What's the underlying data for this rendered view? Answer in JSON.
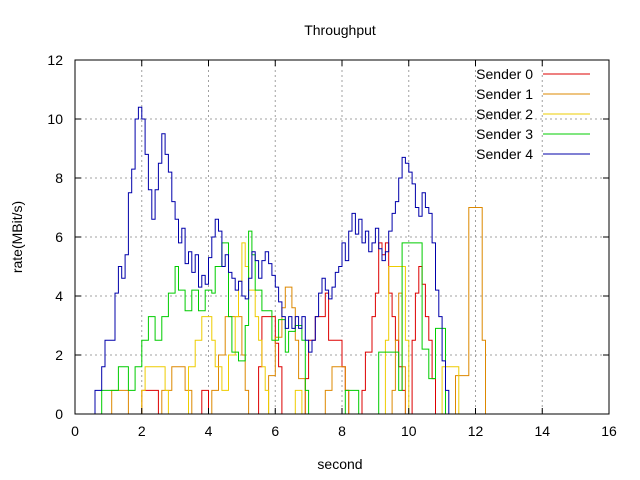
{
  "chart_data": {
    "type": "line",
    "title": "Throughput",
    "xlabel": "second",
    "ylabel": "rate(MBit/s)",
    "xlim": [
      0,
      16
    ],
    "ylim": [
      0,
      12
    ],
    "xticks": [
      0,
      2,
      4,
      6,
      8,
      10,
      12,
      14,
      16
    ],
    "yticks": [
      0,
      2,
      4,
      6,
      8,
      10,
      12
    ],
    "xtick_labels": [
      "0",
      "2",
      "4",
      "6",
      "8",
      "10",
      "12",
      "14",
      "16"
    ],
    "ytick_labels": [
      "0",
      "2",
      "4",
      "6",
      "8",
      "10",
      "12"
    ],
    "grid": true,
    "legend_position": "top-right",
    "step": true,
    "series": [
      {
        "name": "Sender 0",
        "color": "#dd0000",
        "points": [
          [
            1.9,
            0
          ],
          [
            2.0,
            0.8
          ],
          [
            2.4,
            0.8
          ],
          [
            2.5,
            0
          ],
          [
            3.7,
            0
          ],
          [
            3.8,
            0.8
          ],
          [
            4.0,
            0
          ],
          [
            5.4,
            0
          ],
          [
            5.5,
            1.6
          ],
          [
            5.6,
            3.3
          ],
          [
            5.9,
            3.3
          ],
          [
            6.0,
            2.4
          ],
          [
            6.1,
            1.6
          ],
          [
            6.2,
            0
          ],
          [
            6.8,
            0
          ],
          [
            6.9,
            1.2
          ],
          [
            7.0,
            2.5
          ],
          [
            7.2,
            3.3
          ],
          [
            7.5,
            4.1
          ],
          [
            7.6,
            2.5
          ],
          [
            7.8,
            2.5
          ],
          [
            8.0,
            1.6
          ],
          [
            8.1,
            0.8
          ],
          [
            8.2,
            0
          ],
          [
            8.5,
            0
          ],
          [
            8.6,
            0.8
          ],
          [
            8.7,
            2.1
          ],
          [
            8.9,
            3.3
          ],
          [
            9.0,
            4.1
          ],
          [
            9.1,
            5.8
          ],
          [
            9.2,
            5.4
          ],
          [
            9.3,
            5.8
          ],
          [
            9.4,
            4.1
          ],
          [
            9.5,
            3.3
          ],
          [
            9.6,
            2.5
          ],
          [
            9.7,
            1.6
          ],
          [
            9.8,
            0.8
          ],
          [
            9.9,
            0
          ],
          [
            10.0,
            0
          ],
          [
            10.1,
            2.5
          ],
          [
            10.2,
            4.1
          ],
          [
            10.3,
            5.0
          ],
          [
            10.4,
            4.4
          ],
          [
            10.5,
            3.3
          ],
          [
            10.6,
            2.5
          ],
          [
            10.7,
            1.2
          ],
          [
            10.8,
            0
          ]
        ]
      },
      {
        "name": "Sender 1",
        "color": "#dd8800",
        "points": [
          [
            1.0,
            0
          ],
          [
            1.1,
            0.8
          ],
          [
            1.5,
            0.8
          ],
          [
            1.6,
            0
          ],
          [
            2.5,
            0
          ],
          [
            2.6,
            0.8
          ],
          [
            2.9,
            1.6
          ],
          [
            3.2,
            1.6
          ],
          [
            3.3,
            0.8
          ],
          [
            3.5,
            0
          ],
          [
            4.0,
            0
          ],
          [
            4.1,
            0.8
          ],
          [
            4.3,
            2.0
          ],
          [
            4.5,
            3.3
          ],
          [
            4.8,
            3.3
          ],
          [
            5.0,
            2.0
          ],
          [
            5.1,
            0.8
          ],
          [
            5.2,
            0
          ],
          [
            5.7,
            0
          ],
          [
            5.8,
            1.3
          ],
          [
            6.0,
            2.6
          ],
          [
            6.2,
            3.6
          ],
          [
            6.3,
            4.3
          ],
          [
            6.5,
            3.6
          ],
          [
            6.6,
            2.5
          ],
          [
            6.7,
            1.2
          ],
          [
            6.9,
            0
          ],
          [
            7.4,
            0
          ],
          [
            7.5,
            0.8
          ],
          [
            7.7,
            1.6
          ],
          [
            8.0,
            1.6
          ],
          [
            8.1,
            0.8
          ],
          [
            8.2,
            0
          ],
          [
            9.4,
            0
          ],
          [
            9.5,
            0.8
          ],
          [
            9.6,
            2.5
          ],
          [
            9.7,
            4.1
          ],
          [
            9.8,
            1.6
          ],
          [
            9.9,
            0
          ],
          [
            11.3,
            0
          ],
          [
            11.4,
            1.3
          ],
          [
            11.7,
            1.3
          ],
          [
            11.8,
            7.0
          ],
          [
            12.1,
            7.0
          ],
          [
            12.2,
            2.5
          ],
          [
            12.3,
            0
          ]
        ]
      },
      {
        "name": "Sender 2",
        "color": "#eecc00",
        "points": [
          [
            1.9,
            0
          ],
          [
            2.0,
            0.8
          ],
          [
            2.1,
            1.6
          ],
          [
            2.5,
            1.6
          ],
          [
            2.7,
            0.8
          ],
          [
            2.8,
            0
          ],
          [
            3.2,
            0
          ],
          [
            3.4,
            1.6
          ],
          [
            3.6,
            2.5
          ],
          [
            3.8,
            3.3
          ],
          [
            4.0,
            3.3
          ],
          [
            4.1,
            2.5
          ],
          [
            4.2,
            1.6
          ],
          [
            4.4,
            0.8
          ],
          [
            4.6,
            2.0
          ],
          [
            4.8,
            3.3
          ],
          [
            4.9,
            4.5
          ],
          [
            5.0,
            5.8
          ],
          [
            5.1,
            5.0
          ],
          [
            5.2,
            4.2
          ],
          [
            5.4,
            3.3
          ],
          [
            5.5,
            2.5
          ],
          [
            5.6,
            1.6
          ],
          [
            5.7,
            0.8
          ],
          [
            5.8,
            0
          ],
          [
            6.5,
            0
          ],
          [
            6.6,
            0.8
          ],
          [
            6.8,
            0
          ],
          [
            9.2,
            0
          ],
          [
            9.3,
            2.5
          ],
          [
            9.4,
            5.0
          ],
          [
            9.8,
            5.0
          ],
          [
            9.9,
            2.5
          ],
          [
            10.0,
            0
          ],
          [
            10.9,
            0
          ],
          [
            11.0,
            1.6
          ],
          [
            11.3,
            1.6
          ],
          [
            11.5,
            0
          ]
        ]
      },
      {
        "name": "Sender 3",
        "color": "#00cc00",
        "points": [
          [
            0.7,
            0
          ],
          [
            0.8,
            0.8
          ],
          [
            1.2,
            0.8
          ],
          [
            1.3,
            1.6
          ],
          [
            1.5,
            1.6
          ],
          [
            1.6,
            0.8
          ],
          [
            1.8,
            1.6
          ],
          [
            2.0,
            2.5
          ],
          [
            2.2,
            3.3
          ],
          [
            2.4,
            2.5
          ],
          [
            2.6,
            3.3
          ],
          [
            2.8,
            4.1
          ],
          [
            3.0,
            5.0
          ],
          [
            3.1,
            4.2
          ],
          [
            3.3,
            3.5
          ],
          [
            3.5,
            4.2
          ],
          [
            3.7,
            3.5
          ],
          [
            3.9,
            4.2
          ],
          [
            4.1,
            4.1
          ],
          [
            4.2,
            5.0
          ],
          [
            4.4,
            5.8
          ],
          [
            4.6,
            3.3
          ],
          [
            4.7,
            2.1
          ],
          [
            4.9,
            1.8
          ],
          [
            5.1,
            3.0
          ],
          [
            5.2,
            6.2
          ],
          [
            5.3,
            5.4
          ],
          [
            5.4,
            4.2
          ],
          [
            5.6,
            3.5
          ],
          [
            5.9,
            2.5
          ],
          [
            6.1,
            3.2
          ],
          [
            6.3,
            2.1
          ],
          [
            6.4,
            2.8
          ],
          [
            6.6,
            3.0
          ],
          [
            6.8,
            2.5
          ],
          [
            6.9,
            0.8
          ],
          [
            7.0,
            0
          ],
          [
            8.0,
            0
          ],
          [
            8.1,
            0.8
          ],
          [
            8.4,
            0.8
          ],
          [
            8.5,
            0
          ],
          [
            9.0,
            0
          ],
          [
            9.1,
            2.1
          ],
          [
            9.6,
            2.1
          ],
          [
            9.7,
            0.8
          ],
          [
            9.8,
            5.8
          ],
          [
            10.3,
            5.8
          ],
          [
            10.4,
            2.2
          ],
          [
            10.6,
            1.2
          ],
          [
            10.8,
            2.9
          ],
          [
            11.0,
            2.9
          ],
          [
            11.1,
            0
          ]
        ]
      },
      {
        "name": "Sender 4",
        "color": "#0000aa",
        "points": [
          [
            0.5,
            0
          ],
          [
            0.6,
            0.8
          ],
          [
            0.8,
            1.6
          ],
          [
            0.9,
            2.5
          ],
          [
            1.1,
            2.5
          ],
          [
            1.2,
            4.1
          ],
          [
            1.3,
            5.0
          ],
          [
            1.4,
            4.6
          ],
          [
            1.5,
            5.4
          ],
          [
            1.6,
            7.5
          ],
          [
            1.7,
            8.3
          ],
          [
            1.8,
            10.0
          ],
          [
            1.9,
            10.4
          ],
          [
            2.0,
            10.0
          ],
          [
            2.1,
            8.8
          ],
          [
            2.2,
            7.6
          ],
          [
            2.3,
            6.6
          ],
          [
            2.4,
            7.6
          ],
          [
            2.5,
            8.5
          ],
          [
            2.6,
            9.5
          ],
          [
            2.7,
            8.8
          ],
          [
            2.8,
            8.2
          ],
          [
            2.9,
            7.2
          ],
          [
            3.0,
            6.6
          ],
          [
            3.1,
            5.8
          ],
          [
            3.2,
            6.3
          ],
          [
            3.3,
            5.1
          ],
          [
            3.4,
            5.5
          ],
          [
            3.5,
            4.8
          ],
          [
            3.6,
            5.4
          ],
          [
            3.7,
            4.3
          ],
          [
            3.8,
            4.7
          ],
          [
            3.9,
            4.4
          ],
          [
            4.0,
            5.3
          ],
          [
            4.1,
            6.0
          ],
          [
            4.2,
            6.6
          ],
          [
            4.3,
            6.2
          ],
          [
            4.4,
            5.0
          ],
          [
            4.5,
            5.4
          ],
          [
            4.6,
            4.8
          ],
          [
            4.7,
            4.6
          ],
          [
            4.8,
            4.2
          ],
          [
            4.9,
            4.5
          ],
          [
            5.0,
            4.0
          ],
          [
            5.1,
            3.9
          ],
          [
            5.2,
            4.6
          ],
          [
            5.3,
            5.5
          ],
          [
            5.4,
            5.2
          ],
          [
            5.5,
            4.6
          ],
          [
            5.6,
            5.2
          ],
          [
            5.7,
            5.5
          ],
          [
            5.8,
            5.1
          ],
          [
            5.9,
            4.7
          ],
          [
            6.0,
            4.3
          ],
          [
            6.1,
            3.8
          ],
          [
            6.2,
            3.3
          ],
          [
            6.3,
            2.9
          ],
          [
            6.4,
            3.3
          ],
          [
            6.5,
            2.9
          ],
          [
            6.6,
            3.3
          ],
          [
            6.7,
            2.9
          ],
          [
            6.8,
            3.3
          ],
          [
            6.9,
            2.5
          ],
          [
            7.0,
            2.1
          ],
          [
            7.1,
            2.5
          ],
          [
            7.2,
            3.3
          ],
          [
            7.3,
            4.1
          ],
          [
            7.4,
            4.6
          ],
          [
            7.5,
            4.2
          ],
          [
            7.6,
            3.9
          ],
          [
            7.7,
            4.3
          ],
          [
            7.8,
            4.8
          ],
          [
            7.9,
            5.0
          ],
          [
            8.0,
            5.8
          ],
          [
            8.1,
            5.2
          ],
          [
            8.2,
            6.2
          ],
          [
            8.3,
            6.8
          ],
          [
            8.4,
            6.1
          ],
          [
            8.5,
            6.6
          ],
          [
            8.6,
            5.8
          ],
          [
            8.7,
            6.2
          ],
          [
            8.8,
            5.5
          ],
          [
            8.9,
            5.8
          ],
          [
            9.0,
            6.3
          ],
          [
            9.1,
            5.6
          ],
          [
            9.2,
            5.2
          ],
          [
            9.3,
            5.5
          ],
          [
            9.4,
            6.2
          ],
          [
            9.5,
            6.8
          ],
          [
            9.6,
            7.2
          ],
          [
            9.7,
            8.0
          ],
          [
            9.8,
            8.7
          ],
          [
            9.9,
            8.5
          ],
          [
            10.0,
            8.2
          ],
          [
            10.1,
            7.8
          ],
          [
            10.2,
            7.0
          ],
          [
            10.3,
            6.7
          ],
          [
            10.4,
            7.5
          ],
          [
            10.5,
            7.0
          ],
          [
            10.6,
            6.8
          ],
          [
            10.7,
            5.8
          ],
          [
            10.8,
            4.2
          ],
          [
            10.9,
            3.3
          ],
          [
            11.0,
            1.8
          ],
          [
            11.1,
            0.8
          ],
          [
            11.2,
            0
          ]
        ]
      }
    ]
  }
}
